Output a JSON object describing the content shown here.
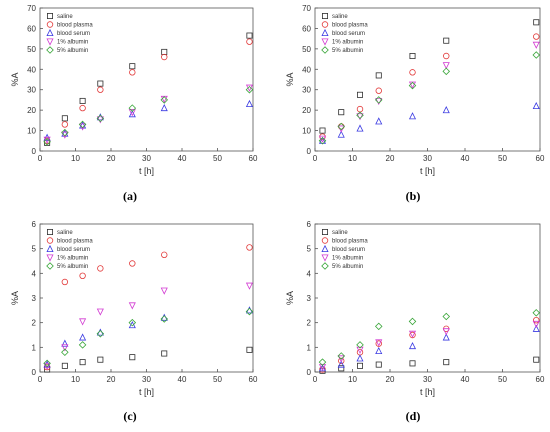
{
  "chart_data": [
    {
      "type": "scatter",
      "panel_label": "(a)",
      "xlabel": "t [h]",
      "ylabel": "%A",
      "xlim": [
        0,
        60
      ],
      "ylim": [
        0,
        70
      ],
      "xticks": [
        0,
        10,
        20,
        30,
        40,
        50,
        60
      ],
      "yticks": [
        0,
        10,
        20,
        30,
        40,
        50,
        60,
        70
      ],
      "legend_position": "top-left",
      "series": [
        {
          "name": "saline",
          "marker": "square",
          "color": "#303030",
          "x": [
            2,
            7,
            12,
            17,
            26,
            35,
            59
          ],
          "y": [
            4,
            16,
            24.5,
            33,
            41.5,
            48.5,
            56.5
          ]
        },
        {
          "name": "blood plasma",
          "marker": "circle",
          "color": "#e23a3a",
          "x": [
            2,
            7,
            12,
            17,
            26,
            35,
            59
          ],
          "y": [
            5,
            13,
            21,
            30,
            38.5,
            46,
            53.5
          ]
        },
        {
          "name": "blood serum",
          "marker": "triangle-up",
          "color": "#3a3ae2",
          "x": [
            2,
            7,
            12,
            17,
            26,
            35,
            59
          ],
          "y": [
            6.5,
            8.5,
            12.5,
            16.5,
            18,
            21,
            23
          ]
        },
        {
          "name": "1% albumin",
          "marker": "triangle-down",
          "color": "#d23ad2",
          "x": [
            2,
            7,
            12,
            17,
            26,
            35,
            59
          ],
          "y": [
            5.5,
            8,
            12,
            15.5,
            19,
            25.5,
            31
          ]
        },
        {
          "name": "5% albumin",
          "marker": "diamond",
          "color": "#3aa63a",
          "x": [
            2,
            7,
            12,
            17,
            26,
            35,
            59
          ],
          "y": [
            4.5,
            9,
            13,
            16,
            21,
            25,
            30
          ]
        }
      ]
    },
    {
      "type": "scatter",
      "panel_label": "(b)",
      "xlabel": "t [h]",
      "ylabel": "%A",
      "xlim": [
        0,
        60
      ],
      "ylim": [
        0,
        70
      ],
      "xticks": [
        0,
        10,
        20,
        30,
        40,
        50,
        60
      ],
      "yticks": [
        0,
        10,
        20,
        30,
        40,
        50,
        60,
        70
      ],
      "legend_position": "top-left",
      "series": [
        {
          "name": "saline",
          "marker": "square",
          "color": "#303030",
          "x": [
            2,
            7,
            12,
            17,
            26,
            35,
            59
          ],
          "y": [
            10,
            19,
            27.5,
            37,
            46.5,
            54,
            63
          ]
        },
        {
          "name": "blood plasma",
          "marker": "circle",
          "color": "#e23a3a",
          "x": [
            2,
            7,
            12,
            17,
            26,
            35,
            59
          ],
          "y": [
            7,
            12,
            20.5,
            29.5,
            38.5,
            46.5,
            56
          ]
        },
        {
          "name": "blood serum",
          "marker": "triangle-up",
          "color": "#3a3ae2",
          "x": [
            2,
            7,
            12,
            17,
            26,
            35,
            59
          ],
          "y": [
            5,
            8,
            11,
            14.5,
            17,
            20,
            22
          ]
        },
        {
          "name": "1% albumin",
          "marker": "triangle-down",
          "color": "#d23ad2",
          "x": [
            2,
            7,
            12,
            17,
            26,
            35,
            59
          ],
          "y": [
            6,
            11,
            17,
            24.5,
            32.5,
            42,
            52
          ]
        },
        {
          "name": "5% albumin",
          "marker": "diamond",
          "color": "#3aa63a",
          "x": [
            2,
            7,
            12,
            17,
            26,
            35,
            59
          ],
          "y": [
            5,
            12,
            17.5,
            25,
            32,
            39,
            47
          ]
        }
      ]
    },
    {
      "type": "scatter",
      "panel_label": "(c)",
      "xlabel": "t [h]",
      "ylabel": "%A",
      "xlim": [
        0,
        60
      ],
      "ylim": [
        0,
        6
      ],
      "xticks": [
        0,
        10,
        20,
        30,
        40,
        50,
        60
      ],
      "yticks": [
        0,
        1,
        2,
        3,
        4,
        5,
        6
      ],
      "legend_position": "top-left",
      "series": [
        {
          "name": "saline",
          "marker": "square",
          "color": "#303030",
          "x": [
            2,
            7,
            12,
            17,
            26,
            35,
            59
          ],
          "y": [
            0.1,
            0.25,
            0.4,
            0.5,
            0.6,
            0.75,
            0.9
          ]
        },
        {
          "name": "blood plasma",
          "marker": "circle",
          "color": "#e23a3a",
          "x": [
            2,
            7,
            12,
            17,
            26,
            35,
            59
          ],
          "y": [
            0.2,
            3.65,
            3.9,
            4.2,
            4.4,
            4.75,
            5.05
          ]
        },
        {
          "name": "blood serum",
          "marker": "triangle-up",
          "color": "#3a3ae2",
          "x": [
            2,
            7,
            12,
            17,
            26,
            35,
            59
          ],
          "y": [
            0.3,
            1.15,
            1.4,
            1.6,
            1.9,
            2.2,
            2.5
          ]
        },
        {
          "name": "1% albumin",
          "marker": "triangle-down",
          "color": "#d23ad2",
          "x": [
            2,
            7,
            12,
            17,
            26,
            35,
            59
          ],
          "y": [
            0.25,
            1.0,
            2.05,
            2.45,
            2.7,
            3.3,
            3.5
          ]
        },
        {
          "name": "5% albumin",
          "marker": "diamond",
          "color": "#3aa63a",
          "x": [
            2,
            7,
            12,
            17,
            26,
            35,
            59
          ],
          "y": [
            0.35,
            0.8,
            1.1,
            1.55,
            2.0,
            2.15,
            2.45
          ]
        }
      ]
    },
    {
      "type": "scatter",
      "panel_label": "(d)",
      "xlabel": "t [h]",
      "ylabel": "%A",
      "xlim": [
        0,
        60
      ],
      "ylim": [
        0,
        6
      ],
      "xticks": [
        0,
        10,
        20,
        30,
        40,
        50,
        60
      ],
      "yticks": [
        0,
        1,
        2,
        3,
        4,
        5,
        6
      ],
      "legend_position": "top-left",
      "series": [
        {
          "name": "saline",
          "marker": "square",
          "color": "#303030",
          "x": [
            2,
            7,
            12,
            17,
            26,
            35,
            59
          ],
          "y": [
            0.05,
            0.15,
            0.25,
            0.3,
            0.35,
            0.4,
            0.5
          ]
        },
        {
          "name": "blood plasma",
          "marker": "circle",
          "color": "#e23a3a",
          "x": [
            2,
            7,
            12,
            17,
            26,
            35,
            59
          ],
          "y": [
            0.1,
            0.45,
            0.8,
            1.15,
            1.5,
            1.75,
            2.1
          ]
        },
        {
          "name": "blood serum",
          "marker": "triangle-up",
          "color": "#3a3ae2",
          "x": [
            2,
            7,
            12,
            17,
            26,
            35,
            59
          ],
          "y": [
            0.15,
            0.3,
            0.55,
            0.85,
            1.05,
            1.4,
            1.75
          ]
        },
        {
          "name": "1% albumin",
          "marker": "triangle-down",
          "color": "#d23ad2",
          "x": [
            2,
            7,
            12,
            17,
            26,
            35,
            59
          ],
          "y": [
            0.2,
            0.55,
            0.9,
            1.2,
            1.55,
            1.65,
            1.95
          ]
        },
        {
          "name": "5% albumin",
          "marker": "diamond",
          "color": "#3aa63a",
          "x": [
            2,
            7,
            12,
            17,
            26,
            35,
            59
          ],
          "y": [
            0.4,
            0.65,
            1.1,
            1.85,
            2.05,
            2.25,
            2.4
          ]
        }
      ]
    }
  ]
}
